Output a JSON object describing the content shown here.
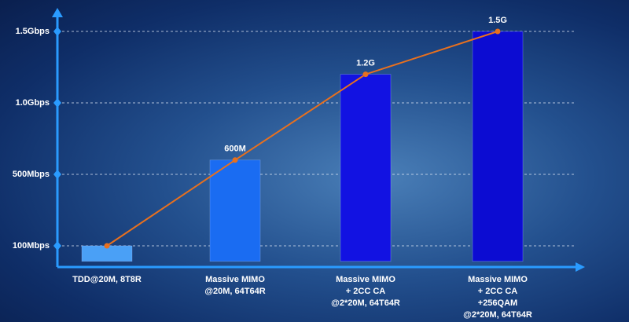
{
  "chart_data": {
    "type": "bar",
    "categories": [
      [
        "TDD@20M, 8T8R"
      ],
      [
        "Massive MIMO",
        "@20M, 64T64R"
      ],
      [
        "Massive MIMO",
        "+ 2CC CA",
        "@2*20M, 64T64R"
      ],
      [
        "Massive MIMO",
        "+ 2CC CA",
        "+256QAM",
        "@2*20M, 64T64R"
      ]
    ],
    "values": [
      100,
      600,
      1200,
      1500
    ],
    "value_labels": [
      null,
      "600M",
      "1.2G",
      "1.5G"
    ],
    "colors": [
      "#4aa0f6",
      "#1a6cf2",
      "#1212e2",
      "#0c0cd2"
    ],
    "line": true,
    "line_color": "#e8701e",
    "ylim": [
      0,
      1650
    ],
    "yticks": [
      {
        "value": 100,
        "label": "100Mbps"
      },
      {
        "value": 500,
        "label": "500Mbps"
      },
      {
        "value": 1000,
        "label": "1.0Gbps"
      },
      {
        "value": 1500,
        "label": "1.5Gbps"
      }
    ],
    "grid": true
  }
}
